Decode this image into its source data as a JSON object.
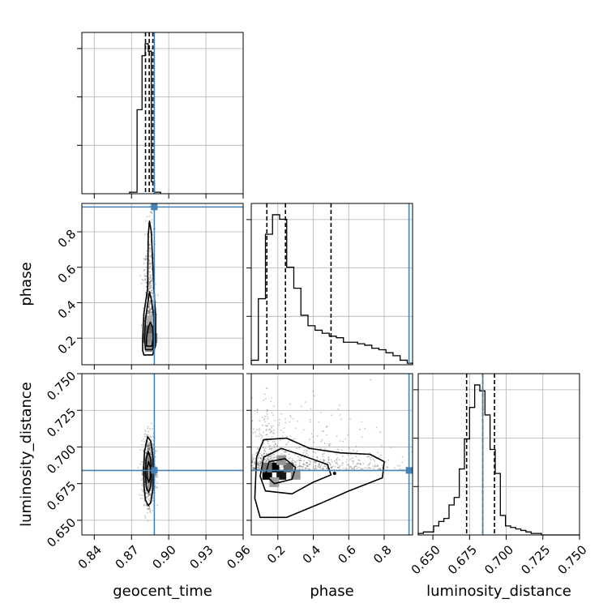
{
  "chart_data": {
    "type": "corner",
    "parameters": [
      {
        "name": "geocent_time",
        "range": [
          0.83,
          0.96
        ],
        "ticks": [
          "0.84",
          "0.87",
          "0.90",
          "0.93",
          "0.96"
        ],
        "tick_values": [
          0.84,
          0.87,
          0.9,
          0.93,
          0.96
        ],
        "truth": 0.8884,
        "quantiles": [
          0.8813,
          0.8843,
          0.8872
        ]
      },
      {
        "name": "phase",
        "range": [
          0.05,
          0.96
        ],
        "ticks": [
          "0.2",
          "0.4",
          "0.6",
          "0.8"
        ],
        "tick_values": [
          0.2,
          0.4,
          0.6,
          0.8
        ],
        "truth": 0.94,
        "quantiles": [
          0.138,
          0.243,
          0.5
        ]
      },
      {
        "name": "luminosity_distance",
        "range": [
          0.64,
          0.75
        ],
        "ticks": [
          "0.650",
          "0.675",
          "0.700",
          "0.725",
          "0.750"
        ],
        "tick_values": [
          0.65,
          0.675,
          0.7,
          0.725,
          0.75
        ],
        "truth": 0.684,
        "quantiles": [
          0.673,
          0.684,
          0.692
        ]
      }
    ],
    "histograms": [
      {
        "parameter": "geocent_time",
        "edges": [
          0.8685,
          0.8745,
          0.8785,
          0.881,
          0.8835,
          0.886,
          0.8885,
          0.8935
        ],
        "heights": [
          0.01,
          0.56,
          0.92,
          1.0,
          0.95,
          0.08,
          0.01
        ]
      },
      {
        "parameter": "phase",
        "edges": [
          0.05,
          0.09,
          0.13,
          0.17,
          0.21,
          0.25,
          0.29,
          0.33,
          0.37,
          0.41,
          0.45,
          0.49,
          0.53,
          0.57,
          0.61,
          0.65,
          0.69,
          0.73,
          0.77,
          0.81,
          0.85,
          0.89,
          0.93,
          0.96
        ],
        "heights": [
          0.03,
          0.44,
          0.87,
          1.0,
          0.97,
          0.65,
          0.51,
          0.33,
          0.26,
          0.23,
          0.21,
          0.19,
          0.18,
          0.15,
          0.15,
          0.14,
          0.13,
          0.11,
          0.1,
          0.08,
          0.06,
          0.03,
          0.01
        ]
      },
      {
        "parameter": "luminosity_distance",
        "edges": [
          0.64,
          0.6435,
          0.647,
          0.6505,
          0.654,
          0.6575,
          0.661,
          0.6645,
          0.668,
          0.6715,
          0.675,
          0.6785,
          0.682,
          0.6855,
          0.689,
          0.6925,
          0.696,
          0.6995,
          0.703,
          0.7065,
          0.71,
          0.7135,
          0.717,
          0.7205,
          0.724,
          0.75
        ],
        "heights": [
          0.01,
          0.02,
          0.02,
          0.06,
          0.09,
          0.11,
          0.2,
          0.25,
          0.44,
          0.64,
          0.85,
          1.0,
          0.96,
          0.8,
          0.57,
          0.41,
          0.13,
          0.06,
          0.05,
          0.04,
          0.03,
          0.02,
          0.01,
          0.01,
          0.0
        ]
      }
    ],
    "marginal_y_ticks": [
      0.3,
      0.6,
      0.9
    ],
    "scatter_panels": [
      {
        "x": "geocent_time",
        "y": "phase",
        "center": [
          0.8845,
          0.2
        ],
        "spread": [
          0.0022,
          0.17
        ],
        "skew": 0.6
      },
      {
        "x": "geocent_time",
        "y": "luminosity_distance",
        "center": [
          0.8842,
          0.684
        ],
        "spread": [
          0.0023,
          0.011
        ],
        "skew": 0
      },
      {
        "x": "phase",
        "y": "luminosity_distance",
        "center": [
          0.18,
          0.684
        ],
        "spread": [
          0.18,
          0.012
        ],
        "skew": 0.9
      }
    ],
    "contours": [
      {
        "x": "geocent_time",
        "y": "phase",
        "levels": [
          [
            [
              0.88,
              0.105
            ],
            [
              0.887,
              0.105
            ],
            [
              0.8895,
              0.16
            ],
            [
              0.8895,
              0.33
            ],
            [
              0.888,
              0.48
            ],
            [
              0.886,
              0.8
            ],
            [
              0.8845,
              0.86
            ],
            [
              0.8835,
              0.78
            ],
            [
              0.883,
              0.48
            ],
            [
              0.88,
              0.34
            ],
            [
              0.879,
              0.2
            ],
            [
              0.879,
              0.13
            ]
          ],
          [
            [
              0.8812,
              0.135
            ],
            [
              0.887,
              0.135
            ],
            [
              0.8885,
              0.2
            ],
            [
              0.888,
              0.32
            ],
            [
              0.886,
              0.42
            ],
            [
              0.8845,
              0.46
            ],
            [
              0.8832,
              0.4
            ],
            [
              0.8812,
              0.3
            ],
            [
              0.8805,
              0.2
            ]
          ],
          [
            [
              0.8822,
              0.155
            ],
            [
              0.8865,
              0.155
            ],
            [
              0.8875,
              0.2
            ],
            [
              0.887,
              0.26
            ],
            [
              0.8852,
              0.29
            ],
            [
              0.8835,
              0.26
            ],
            [
              0.882,
              0.2
            ]
          ]
        ]
      },
      {
        "x": "geocent_time",
        "y": "luminosity_distance",
        "levels": [
          [
            [
              0.883,
              0.707
            ],
            [
              0.8855,
              0.704
            ],
            [
              0.8872,
              0.694
            ],
            [
              0.8877,
              0.683
            ],
            [
              0.8872,
              0.671
            ],
            [
              0.8855,
              0.662
            ],
            [
              0.8835,
              0.66
            ],
            [
              0.8812,
              0.664
            ],
            [
              0.88,
              0.674
            ],
            [
              0.8798,
              0.686
            ],
            [
              0.8805,
              0.697
            ]
          ],
          [
            [
              0.8835,
              0.697
            ],
            [
              0.8855,
              0.692
            ],
            [
              0.8862,
              0.683
            ],
            [
              0.8855,
              0.673
            ],
            [
              0.8838,
              0.669
            ],
            [
              0.882,
              0.672
            ],
            [
              0.8812,
              0.682
            ],
            [
              0.8818,
              0.692
            ]
          ],
          [
            [
              0.8838,
              0.69
            ],
            [
              0.8852,
              0.686
            ],
            [
              0.8852,
              0.679
            ],
            [
              0.884,
              0.676
            ],
            [
              0.8826,
              0.679
            ],
            [
              0.8826,
              0.686
            ]
          ]
        ]
      },
      {
        "x": "phase",
        "y": "luminosity_distance",
        "levels": [
          [
            [
              0.08,
              0.693
            ],
            [
              0.12,
              0.705
            ],
            [
              0.25,
              0.706
            ],
            [
              0.38,
              0.699
            ],
            [
              0.55,
              0.696
            ],
            [
              0.72,
              0.695
            ],
            [
              0.8,
              0.69
            ],
            [
              0.79,
              0.679
            ],
            [
              0.6,
              0.67
            ],
            [
              0.45,
              0.662
            ],
            [
              0.25,
              0.652
            ],
            [
              0.1,
              0.652
            ],
            [
              0.07,
              0.665
            ]
          ],
          [
            [
              0.12,
              0.693
            ],
            [
              0.22,
              0.699
            ],
            [
              0.32,
              0.695
            ],
            [
              0.48,
              0.688
            ],
            [
              0.5,
              0.681
            ],
            [
              0.4,
              0.676
            ],
            [
              0.28,
              0.668
            ],
            [
              0.13,
              0.67
            ],
            [
              0.1,
              0.68
            ]
          ],
          [
            [
              0.15,
              0.69
            ],
            [
              0.24,
              0.692
            ],
            [
              0.3,
              0.686
            ],
            [
              0.28,
              0.678
            ],
            [
              0.18,
              0.675
            ],
            [
              0.13,
              0.681
            ]
          ]
        ]
      }
    ],
    "density_blocks": [
      {
        "x": "geocent_time",
        "y": "phase",
        "cells": [
          [
            0.885,
            0.2,
            1.0
          ],
          [
            0.883,
            0.2,
            0.45
          ],
          [
            0.885,
            0.25,
            0.55
          ],
          [
            0.887,
            0.2,
            0.4
          ],
          [
            0.885,
            0.15,
            0.35
          ],
          [
            0.885,
            0.3,
            0.25
          ]
        ]
      },
      {
        "x": "geocent_time",
        "y": "luminosity_distance",
        "cells": [
          [
            0.8845,
            0.6835,
            1.0
          ],
          [
            0.883,
            0.6835,
            0.5
          ],
          [
            0.8845,
            0.6885,
            0.45
          ],
          [
            0.8845,
            0.6785,
            0.45
          ],
          [
            0.886,
            0.6835,
            0.35
          ]
        ]
      },
      {
        "x": "phase",
        "y": "luminosity_distance",
        "cells": [
          [
            0.18,
            0.686,
            1.0
          ],
          [
            0.14,
            0.681,
            1.0
          ],
          [
            0.22,
            0.681,
            0.9
          ],
          [
            0.26,
            0.686,
            0.55
          ],
          [
            0.14,
            0.686,
            0.5
          ],
          [
            0.22,
            0.691,
            0.35
          ],
          [
            0.3,
            0.681,
            0.35
          ],
          [
            0.18,
            0.676,
            0.3
          ]
        ]
      }
    ],
    "outlier_dot": [
      0.52,
      0.682
    ],
    "truth_color": "#4682b4",
    "line_color": "#000000",
    "grid": true
  }
}
